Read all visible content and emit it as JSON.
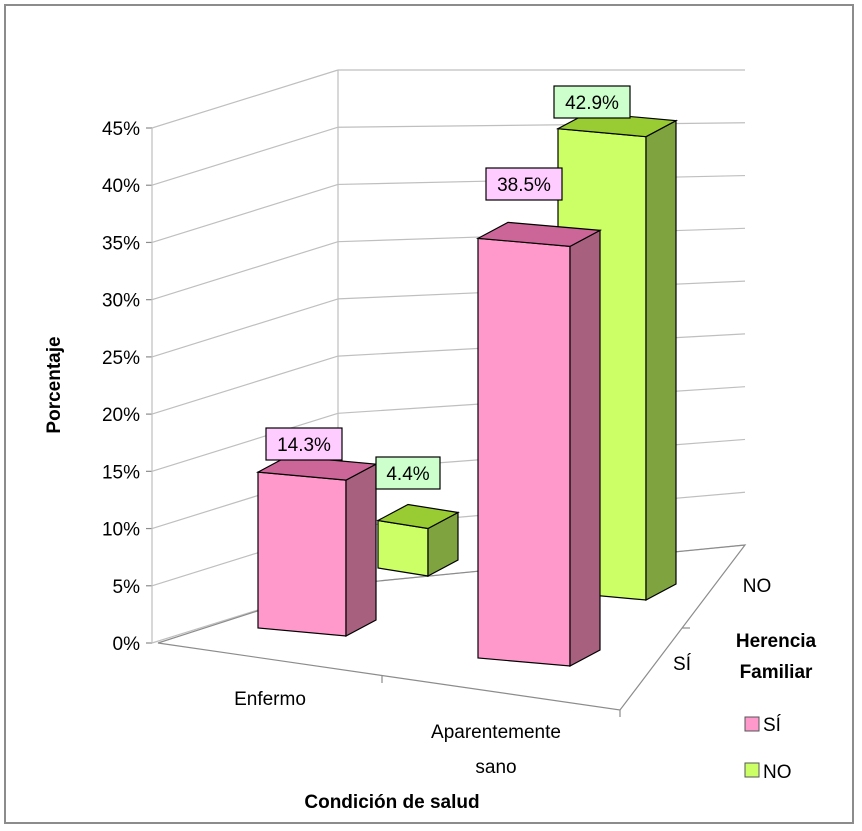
{
  "chart_data": {
    "type": "bar",
    "categories": [
      "Enfermo",
      "Aparentemente sano"
    ],
    "series": [
      {
        "name": "SÍ",
        "values": [
          14.3,
          38.5
        ]
      },
      {
        "name": "NO",
        "values": [
          4.4,
          42.9
        ]
      }
    ],
    "data_labels": [
      [
        "14.3%",
        "38.5%"
      ],
      [
        "4.4%",
        "42.9%"
      ]
    ],
    "xlabel": "Condición de salud",
    "ylabel": "Porcentaje",
    "depth_axis_label": "Herencia Familiar",
    "depth_ticks": [
      "SÍ",
      "NO"
    ],
    "y_ticks": [
      "0%",
      "5%",
      "10%",
      "15%",
      "20%",
      "25%",
      "30%",
      "35%",
      "40%",
      "45%"
    ],
    "ylim": [
      0,
      45
    ],
    "legend": {
      "title": "Herencia Familiar",
      "entries": [
        "SÍ",
        "NO"
      ],
      "position": "right"
    },
    "grid": true,
    "colors": {
      "SÍ": "#ff99cc",
      "SÍ_side": "#a8607f",
      "SÍ_top": "#cc6699",
      "SÍ_label_bg": "#ffccff",
      "NO": "#ccff66",
      "NO_side": "#7fa33f",
      "NO_top": "#99cc33",
      "NO_label_bg": "#ccffcc"
    }
  }
}
